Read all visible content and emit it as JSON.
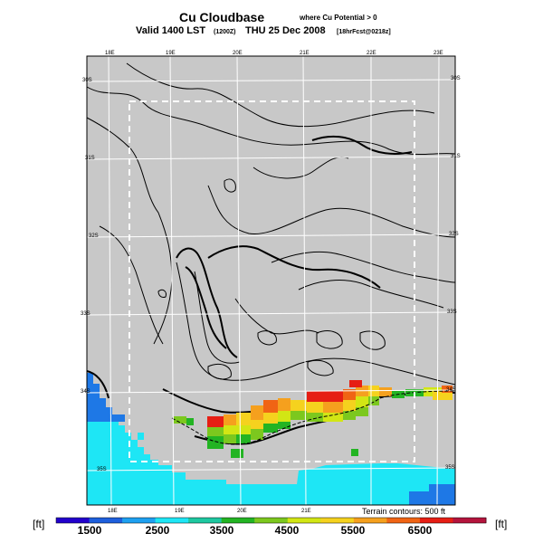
{
  "title": {
    "main": "Cu Cloudbase",
    "qualifier": "where Cu Potential > 0",
    "valid": "Valid 1400 LST",
    "valid_z": "(1200Z)",
    "date": "THU 25 Dec 2008",
    "run_info": "[18hrFcst@0218z]"
  },
  "map": {
    "lon_labels_top": [
      "18E",
      "19E",
      "20E",
      "21E",
      "22E",
      "23E"
    ],
    "lon_labels_bottom": [
      "18E",
      "19E",
      "20E",
      "21E"
    ],
    "lat_labels_left": [
      "30S",
      "31S",
      "32S",
      "33S",
      "34S",
      "35S"
    ],
    "lat_labels_right": [
      "30S",
      "31S",
      "32S",
      "33S",
      "34S",
      "35S"
    ],
    "terrain_note": "Terrain contours: 500 ft",
    "colors": {
      "land": "#c8c8c8",
      "ocean": "#1ee6f5",
      "deep_ocean": "#1e78e6",
      "grid": "#ffffff",
      "domain_box": "#ffffff"
    }
  },
  "colorbar": {
    "unit_left": "[ft]",
    "unit_right": "[ft]",
    "labels": [
      "1500",
      "2500",
      "3500",
      "4500",
      "5500",
      "6500"
    ],
    "colors": [
      "#2200cc",
      "#1e5fdc",
      "#1ea0f0",
      "#1ee6f5",
      "#1ec8a0",
      "#23b423",
      "#7cc81e",
      "#d2e614",
      "#f5d21e",
      "#f5a01e",
      "#f06414",
      "#e61e14",
      "#b4143c"
    ]
  },
  "cloudbase_cells": [
    {
      "value": 6500,
      "color": "#e61e14"
    },
    {
      "value": 5500,
      "color": "#f5a01e"
    },
    {
      "value": 5000,
      "color": "#f5d21e"
    },
    {
      "value": 4500,
      "color": "#d2e614"
    },
    {
      "value": 4000,
      "color": "#7cc81e"
    },
    {
      "value": 3500,
      "color": "#23b423"
    }
  ]
}
